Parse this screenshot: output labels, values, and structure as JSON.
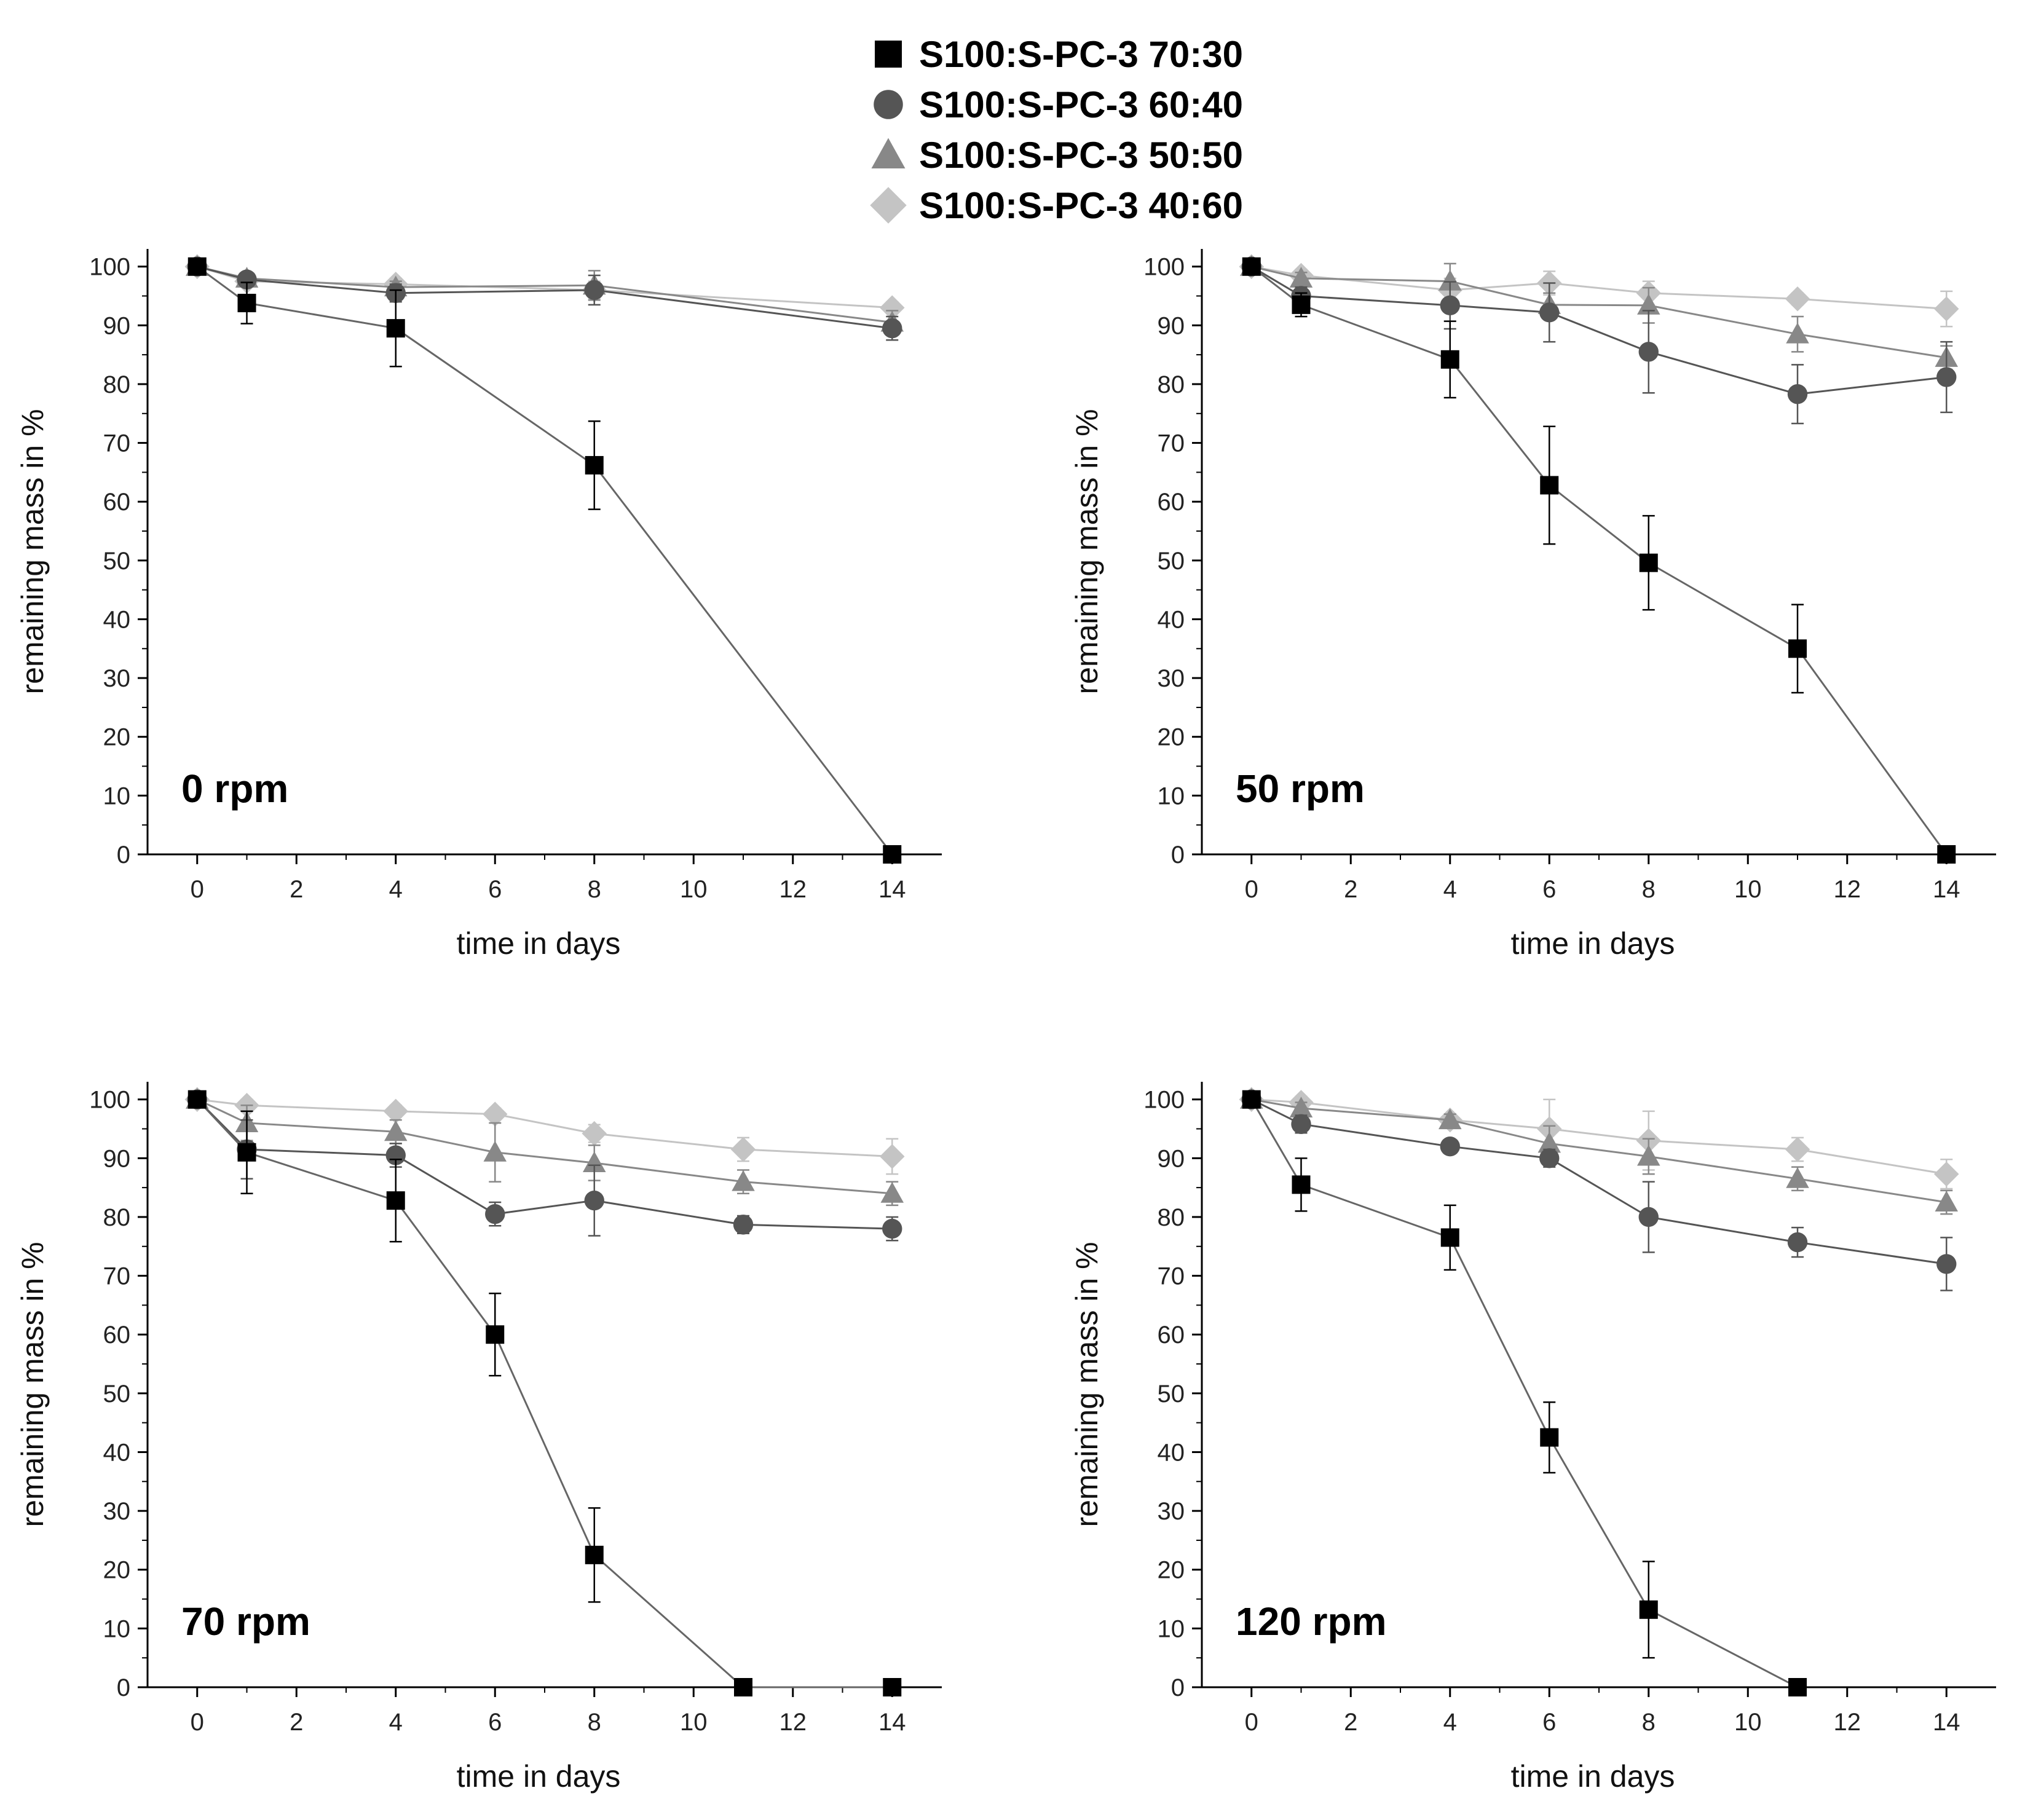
{
  "chart_data": {
    "type": "line",
    "xlabel": "time in days",
    "ylabel": "remaining mass in %",
    "xlim": [
      -1,
      15
    ],
    "ylim": [
      0,
      103
    ],
    "xticks": [
      "0",
      "2",
      "4",
      "6",
      "8",
      "10",
      "12",
      "14"
    ],
    "yticks": [
      "0",
      "10",
      "20",
      "30",
      "40",
      "50",
      "60",
      "70",
      "80",
      "90",
      "100"
    ],
    "legend": [
      {
        "name": "S100:S-PC-3 70:30",
        "marker": "square",
        "color": "#000000"
      },
      {
        "name": "S100:S-PC-3 60:40",
        "marker": "circle",
        "color": "#555555"
      },
      {
        "name": "S100:S-PC-3 50:50",
        "marker": "triangle",
        "color": "#888888"
      },
      {
        "name": "S100:S-PC-3 40:60",
        "marker": "diamond",
        "color": "#c4c4c4"
      }
    ],
    "panels": [
      {
        "label": "0 rpm",
        "series": [
          {
            "name": "S100:S-PC-3 70:30",
            "x": [
              0,
              1,
              4,
              8,
              14
            ],
            "y": [
              100,
              93.8,
              89.5,
              66.2,
              0
            ],
            "err": [
              0,
              3.5,
              6.5,
              7.5,
              0
            ]
          },
          {
            "name": "S100:S-PC-3 60:40",
            "x": [
              0,
              1,
              4,
              8,
              14
            ],
            "y": [
              100,
              97.8,
              95.5,
              96.0,
              89.5
            ],
            "err": [
              0,
              1,
              1.5,
              2.5,
              2
            ]
          },
          {
            "name": "S100:S-PC-3 50:50",
            "x": [
              0,
              1,
              4,
              8,
              14
            ],
            "y": [
              100,
              98.0,
              96.5,
              96.8,
              90.5
            ],
            "err": [
              0,
              1,
              1,
              2.5,
              2
            ]
          },
          {
            "name": "S100:S-PC-3 40:60",
            "x": [
              0,
              1,
              4,
              8,
              14
            ],
            "y": [
              100,
              97.5,
              97.0,
              96.0,
              93.0
            ],
            "err": [
              0,
              1,
              1,
              1.5,
              1
            ]
          }
        ]
      },
      {
        "label": "50 rpm",
        "series": [
          {
            "name": "S100:S-PC-3 70:30",
            "x": [
              0,
              1,
              4,
              6,
              8,
              11,
              14
            ],
            "y": [
              100,
              93.5,
              84.2,
              62.8,
              49.6,
              35.0,
              0
            ],
            "err": [
              0,
              2,
              6.5,
              10,
              8,
              7.5,
              0
            ]
          },
          {
            "name": "S100:S-PC-3 60:40",
            "x": [
              0,
              1,
              4,
              6,
              8,
              11,
              14
            ],
            "y": [
              100,
              95.0,
              93.4,
              92.2,
              85.5,
              78.3,
              81.2
            ],
            "err": [
              0,
              1.5,
              4,
              5,
              7,
              5,
              6
            ]
          },
          {
            "name": "S100:S-PC-3 50:50",
            "x": [
              0,
              1,
              4,
              6,
              8,
              11,
              14
            ],
            "y": [
              100,
              98.0,
              97.5,
              93.5,
              93.4,
              88.5,
              84.5
            ],
            "err": [
              0,
              1,
              3,
              2,
              3,
              3,
              2
            ]
          },
          {
            "name": "S100:S-PC-3 40:60",
            "x": [
              0,
              1,
              4,
              6,
              8,
              11,
              14
            ],
            "y": [
              100,
              98.5,
              96.0,
              97.2,
              95.5,
              94.5,
              92.8
            ],
            "err": [
              0,
              1,
              2,
              2,
              2,
              1,
              3
            ]
          }
        ]
      },
      {
        "label": "70 rpm",
        "series": [
          {
            "name": "S100:S-PC-3 70:30",
            "x": [
              0,
              1,
              4,
              6,
              8,
              11,
              14
            ],
            "y": [
              100,
              91.0,
              82.8,
              60.0,
              22.5,
              0,
              0
            ],
            "err": [
              0,
              7,
              7,
              7,
              8,
              0,
              0
            ]
          },
          {
            "name": "S100:S-PC-3 60:40",
            "x": [
              0,
              1,
              4,
              6,
              8,
              11,
              14
            ],
            "y": [
              100,
              91.5,
              90.5,
              80.5,
              82.8,
              78.7,
              78.0
            ],
            "err": [
              0,
              5,
              2,
              2,
              6,
              1.5,
              2
            ]
          },
          {
            "name": "S100:S-PC-3 50:50",
            "x": [
              0,
              1,
              4,
              6,
              8,
              11,
              14
            ],
            "y": [
              100,
              96.0,
              94.5,
              91.0,
              89.2,
              86.0,
              84.0
            ],
            "err": [
              0,
              3,
              2,
              5,
              3,
              2,
              2
            ]
          },
          {
            "name": "S100:S-PC-3 40:60",
            "x": [
              0,
              1,
              4,
              6,
              8,
              11,
              14
            ],
            "y": [
              100,
              99.0,
              98.0,
              97.5,
              94.2,
              91.5,
              90.3
            ],
            "err": [
              0,
              1,
              1,
              1,
              1.5,
              2,
              3
            ]
          }
        ]
      },
      {
        "label": "120 rpm",
        "series": [
          {
            "name": "S100:S-PC-3 70:30",
            "x": [
              0,
              1,
              4,
              6,
              8,
              11
            ],
            "y": [
              100,
              85.5,
              76.5,
              42.5,
              13.2,
              0
            ],
            "err": [
              0,
              4.5,
              5.5,
              6,
              8.2,
              0
            ]
          },
          {
            "name": "S100:S-PC-3 60:40",
            "x": [
              0,
              1,
              4,
              6,
              8,
              11,
              14
            ],
            "y": [
              100,
              95.8,
              92.0,
              90.0,
              80.0,
              75.7,
              72.0
            ],
            "err": [
              0,
              1.5,
              1,
              1.5,
              6,
              2.5,
              4.5
            ]
          },
          {
            "name": "S100:S-PC-3 50:50",
            "x": [
              0,
              1,
              4,
              6,
              8,
              11,
              14
            ],
            "y": [
              100,
              98.5,
              96.5,
              92.5,
              90.3,
              86.5,
              82.5
            ],
            "err": [
              0,
              1,
              1,
              3,
              3,
              2,
              2
            ]
          },
          {
            "name": "S100:S-PC-3 40:60",
            "x": [
              0,
              1,
              4,
              6,
              8,
              11,
              14
            ],
            "y": [
              100,
              99.5,
              96.5,
              95.0,
              93.0,
              91.5,
              87.3
            ],
            "err": [
              0,
              1,
              1,
              5,
              5,
              2,
              2.5
            ]
          }
        ]
      }
    ]
  }
}
